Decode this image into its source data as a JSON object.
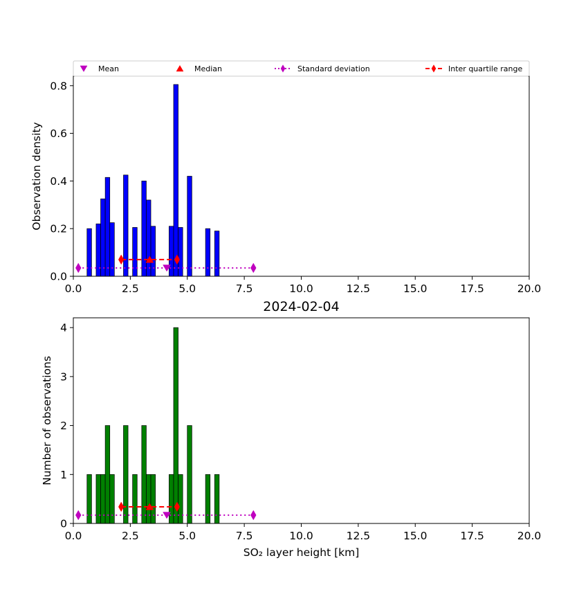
{
  "legend": {
    "items": [
      {
        "label": "Mean",
        "marker": "triangle-down",
        "color": "#bf00bf",
        "line": "none"
      },
      {
        "label": "Median",
        "marker": "triangle-up",
        "color": "#ff0000",
        "line": "none"
      },
      {
        "label": "Standard deviation",
        "marker": "thin-diamond",
        "color": "#bf00bf",
        "line": "dotted"
      },
      {
        "label": "Inter quartile range",
        "marker": "thin-diamond",
        "color": "#ff0000",
        "line": "dashed"
      }
    ]
  },
  "chart_data": [
    {
      "type": "bar",
      "title": "",
      "xlabel": "",
      "ylabel": "Observation density",
      "xlim": [
        0,
        20
      ],
      "ylim": [
        0,
        0.84
      ],
      "x_ticks": [
        "0.0",
        "2.5",
        "5.0",
        "7.5",
        "10.0",
        "12.5",
        "15.0",
        "17.5",
        "20.0"
      ],
      "y_ticks": [
        "0.0",
        "0.2",
        "0.4",
        "0.6",
        "0.8"
      ],
      "y_tick_values": [
        0,
        0.2,
        0.4,
        0.6,
        0.8
      ],
      "bar_color": "#0000ff",
      "bar_width_km": 0.2,
      "bars": [
        {
          "x": 0.7,
          "y": 0.2
        },
        {
          "x": 1.1,
          "y": 0.22
        },
        {
          "x": 1.3,
          "y": 0.325
        },
        {
          "x": 1.5,
          "y": 0.415
        },
        {
          "x": 1.7,
          "y": 0.225
        },
        {
          "x": 2.3,
          "y": 0.425
        },
        {
          "x": 2.7,
          "y": 0.205
        },
        {
          "x": 3.1,
          "y": 0.4
        },
        {
          "x": 3.3,
          "y": 0.32
        },
        {
          "x": 3.5,
          "y": 0.21
        },
        {
          "x": 4.3,
          "y": 0.21
        },
        {
          "x": 4.5,
          "y": 0.805
        },
        {
          "x": 4.7,
          "y": 0.205
        },
        {
          "x": 5.1,
          "y": 0.42
        },
        {
          "x": 5.9,
          "y": 0.2
        },
        {
          "x": 6.3,
          "y": 0.19
        }
      ],
      "stats_y": {
        "std": 0.035,
        "iqr": 0.07,
        "median": 0.07,
        "mean": 0.035
      }
    },
    {
      "type": "bar",
      "title": "2024-02-04",
      "xlabel": "SO₂ layer height [km]",
      "ylabel": "Number of observations",
      "xlim": [
        0,
        20
      ],
      "ylim": [
        0,
        4.2
      ],
      "x_ticks": [
        "0.0",
        "2.5",
        "5.0",
        "7.5",
        "10.0",
        "12.5",
        "15.0",
        "17.5",
        "20.0"
      ],
      "y_ticks": [
        "0",
        "1",
        "2",
        "3",
        "4"
      ],
      "y_tick_values": [
        0,
        1,
        2,
        3,
        4
      ],
      "bar_color": "#008000",
      "bar_width_km": 0.2,
      "bars": [
        {
          "x": 0.7,
          "y": 1
        },
        {
          "x": 1.1,
          "y": 1
        },
        {
          "x": 1.3,
          "y": 1
        },
        {
          "x": 1.5,
          "y": 2
        },
        {
          "x": 1.7,
          "y": 1
        },
        {
          "x": 2.3,
          "y": 2
        },
        {
          "x": 2.7,
          "y": 1
        },
        {
          "x": 3.1,
          "y": 2
        },
        {
          "x": 3.3,
          "y": 1
        },
        {
          "x": 3.5,
          "y": 1
        },
        {
          "x": 4.3,
          "y": 1
        },
        {
          "x": 4.5,
          "y": 4
        },
        {
          "x": 4.7,
          "y": 1
        },
        {
          "x": 5.1,
          "y": 2
        },
        {
          "x": 5.9,
          "y": 1
        },
        {
          "x": 6.3,
          "y": 1
        }
      ],
      "stats_y": {
        "std": 0.17,
        "iqr": 0.34,
        "median": 0.34,
        "mean": 0.17
      }
    }
  ],
  "statistics": {
    "mean": 4.1,
    "median": 3.35,
    "std_range": [
      0.22,
      7.9
    ],
    "iqr_range": [
      2.1,
      4.55
    ]
  }
}
